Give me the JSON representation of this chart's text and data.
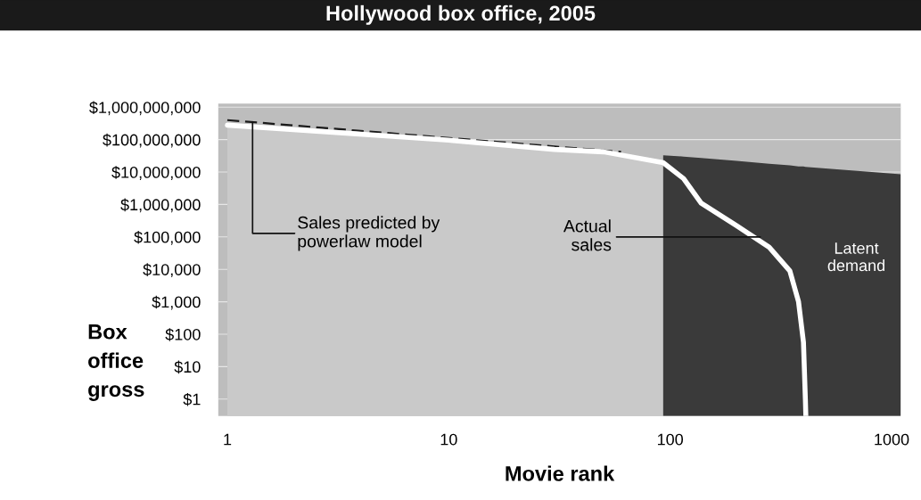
{
  "chart_data": {
    "type": "line",
    "title": "Hollywood box office, 2005",
    "xlabel": "Movie rank",
    "ylabel": "Box\noffice\ngross",
    "log": "xy",
    "grid": "y",
    "xlim": [
      0.91,
      1100
    ],
    "ylim": [
      0.3,
      1300000000
    ],
    "xticks": [
      1,
      10,
      100,
      1000
    ],
    "yticks": [
      {
        "value": 1,
        "label": "$1"
      },
      {
        "value": 10,
        "label": "$10"
      },
      {
        "value": 100,
        "label": "$100"
      },
      {
        "value": 1000,
        "label": "$1,000"
      },
      {
        "value": 10000,
        "label": "$10,000"
      },
      {
        "value": 100000,
        "label": "$100,000"
      },
      {
        "value": 1000000,
        "label": "$1,000,000"
      },
      {
        "value": 10000000,
        "label": "$10,000,000"
      },
      {
        "value": 100000000,
        "label": "$100,000,000"
      },
      {
        "value": 1000000000,
        "label": "$1,000,000,000"
      }
    ],
    "series": [
      {
        "type": "area",
        "color": "#3a3a3a",
        "x": [
          93,
          115,
          138,
          200,
          280,
          347,
          380,
          400,
          408,
          1100
        ],
        "values": [
          33000000,
          30000000,
          27000000,
          22000000,
          18000000,
          16000000,
          15000000,
          15000000,
          14500000,
          8500000
        ]
      },
      {
        "color": "#1a1a1a",
        "line_style": "dashed",
        "x": [
          1,
          60
        ],
        "values": [
          400000000,
          42000000
        ]
      },
      {
        "type": "area",
        "color": "#c9c9c9",
        "line_style": "solid",
        "x": [
          1,
          10,
          30,
          50,
          93,
          115,
          138,
          200,
          280,
          347,
          380,
          400,
          408,
          410
        ],
        "values": [
          280000000,
          96000000,
          50000000,
          42000000,
          19500000,
          6300000,
          1100000,
          220000,
          48000,
          9000,
          1000,
          56,
          1,
          0.3
        ]
      }
    ],
    "annotations": [
      {
        "text": "Sales predicted by\npowerlaw model",
        "x": 1.3,
        "y": 350000000
      },
      {
        "text": "Actual\nsales",
        "x": 255,
        "y": 100000
      },
      "Latent\ndemand"
    ]
  }
}
